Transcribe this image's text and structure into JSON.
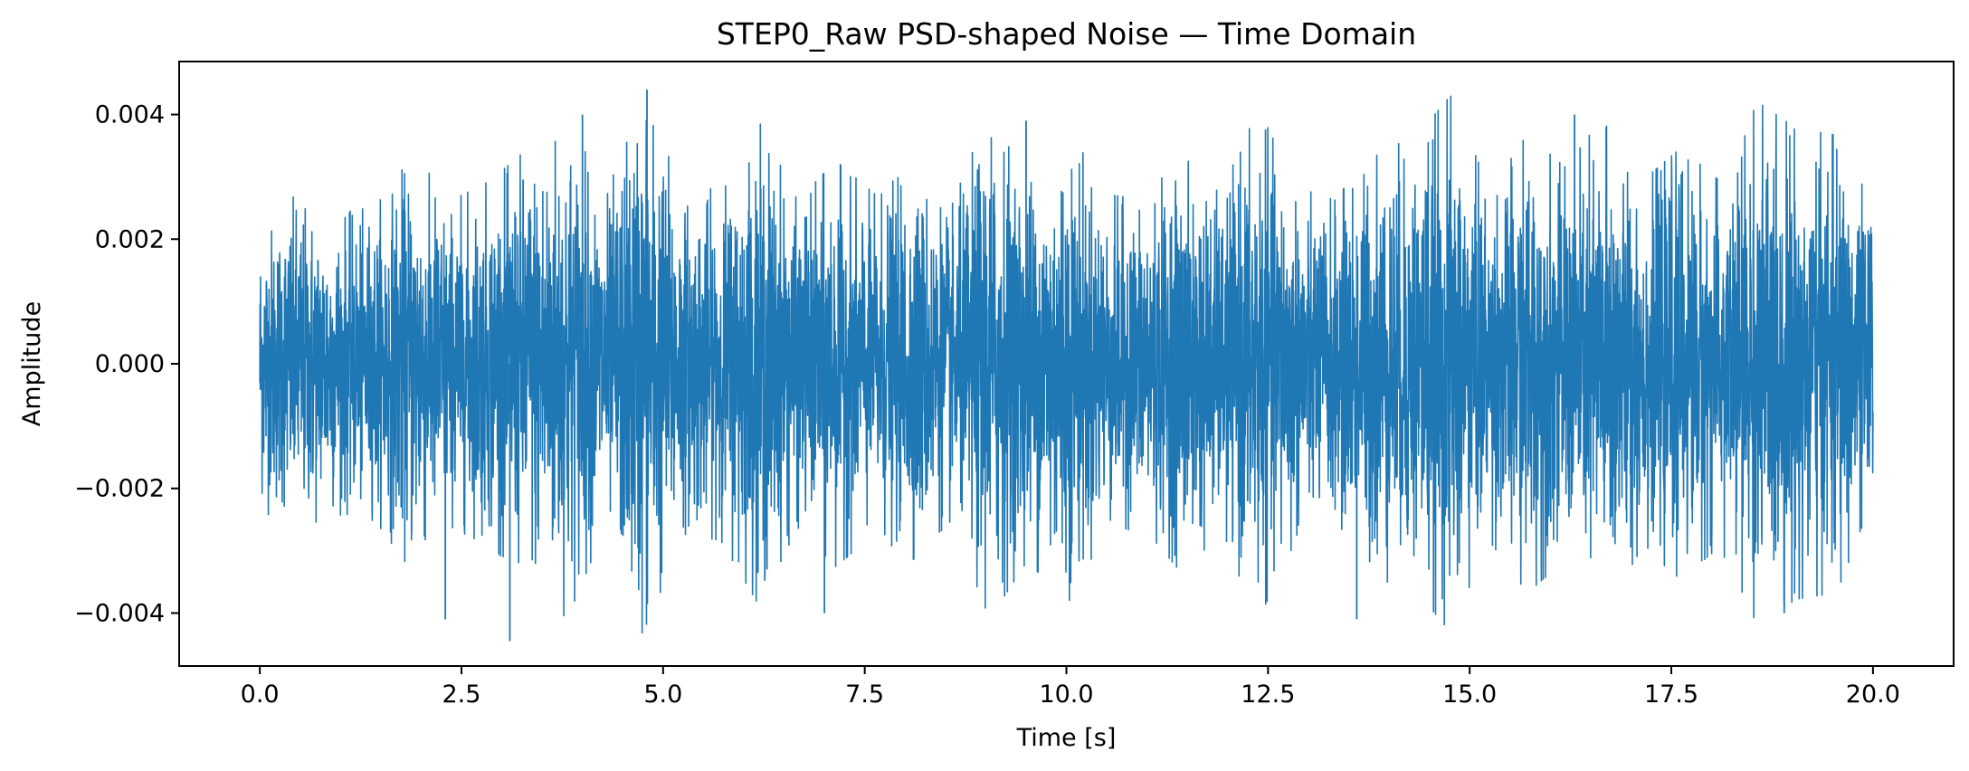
{
  "chart_data": {
    "type": "line",
    "title": "STEP0_Raw PSD-shaped Noise — Time Domain",
    "xlabel": "Time [s]",
    "ylabel": "Amplitude",
    "xlim": [
      -1.0,
      21.0
    ],
    "ylim": [
      -0.00485,
      0.00485
    ],
    "x_ticks": [
      0.0,
      2.5,
      5.0,
      7.5,
      10.0,
      12.5,
      15.0,
      17.5,
      20.0
    ],
    "x_tick_labels": [
      "0.0",
      "2.5",
      "5.0",
      "7.5",
      "10.0",
      "12.5",
      "15.0",
      "17.5",
      "20.0"
    ],
    "y_ticks": [
      -0.004,
      -0.002,
      0.0,
      0.002,
      0.004
    ],
    "y_tick_labels": [
      "−0.004",
      "−0.002",
      "0.000",
      "0.002",
      "0.004"
    ],
    "grid": false,
    "legend": "none",
    "series": [
      {
        "name": "noise",
        "color": "#1f77b4",
        "x_range": [
          0.0,
          20.0
        ],
        "typical_envelope": [
          -0.0023,
          0.0023
        ],
        "envelope_abs": [
          0.00222,
          0.0026,
          0.0023,
          0.0024,
          0.0032,
          0.0025,
          0.0028,
          0.0033,
          0.0039,
          0.0025,
          0.0044,
          0.0026,
          0.0027,
          0.0037,
          0.0025,
          0.0031,
          0.0026,
          0.003,
          0.0024,
          0.0039,
          0.003,
          0.0037,
          0.0026,
          0.0025,
          0.0032,
          0.0026,
          0.0039,
          0.0027,
          0.0025,
          0.0033,
          0.0034,
          0.0041,
          0.0027,
          0.0035,
          0.003,
          0.0038,
          0.0028,
          0.0033,
          0.0028,
          0.004,
          0.0036,
          0.0035,
          0.0025
        ],
        "peaks": [
          {
            "x": 4.8,
            "y": 0.0044
          },
          {
            "x": 3.1,
            "y": -0.00445
          },
          {
            "x": 2.3,
            "y": -0.0041
          },
          {
            "x": 9.5,
            "y": 0.0039
          },
          {
            "x": 13.6,
            "y": -0.0041
          },
          {
            "x": 16.3,
            "y": 0.004
          },
          {
            "x": 7.0,
            "y": -0.004
          },
          {
            "x": 18.9,
            "y": -0.004
          },
          {
            "x": 4.0,
            "y": 0.004
          }
        ]
      }
    ]
  }
}
